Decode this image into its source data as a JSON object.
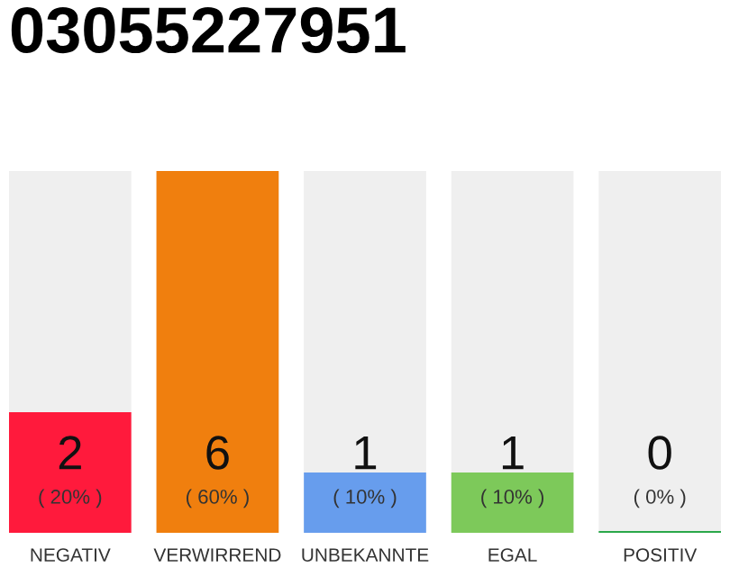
{
  "chart_data": {
    "type": "bar",
    "title": "03055227951",
    "categories": [
      "NEGATIV",
      "VERWIRREND",
      "UNBEKANNTE",
      "EGAL",
      "POSITIV"
    ],
    "values": [
      20,
      60,
      10,
      10,
      0
    ],
    "colors": [
      "#ff1a3c",
      "#f07f0e",
      "#679ded",
      "#7dc95a",
      "#2aa84a"
    ],
    "value_labels": [
      "2\n( 20% )",
      "6\n( 60% )",
      "1\n( 10% )",
      "1\n( 10% )",
      "0\n( 0% )"
    ],
    "tick_labels": "x",
    "grid": false,
    "legend": false
  }
}
